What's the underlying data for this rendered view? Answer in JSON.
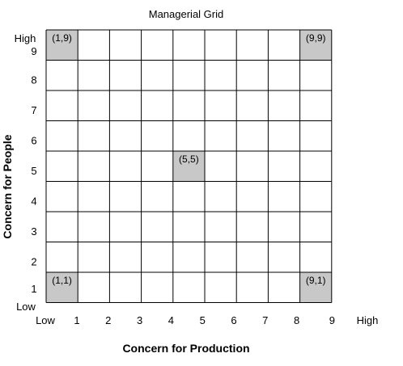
{
  "title": "Managerial Grid",
  "x_axis": {
    "title": "Concern for Production",
    "low_label": "Low",
    "high_label": "High",
    "ticks": [
      "1",
      "2",
      "3",
      "4",
      "5",
      "6",
      "7",
      "8",
      "9"
    ]
  },
  "y_axis": {
    "title": "Concern for People",
    "low_label": "Low",
    "high_label": "High",
    "ticks": [
      "1",
      "2",
      "3",
      "4",
      "5",
      "6",
      "7",
      "8",
      "9"
    ]
  },
  "grid": {
    "cols": 9,
    "rows": 9
  },
  "highlighted_cells": [
    {
      "col": 1,
      "row": 9,
      "label": "(1,9)"
    },
    {
      "col": 9,
      "row": 9,
      "label": "(9,9)"
    },
    {
      "col": 5,
      "row": 5,
      "label": "(5,5)"
    },
    {
      "col": 1,
      "row": 1,
      "label": "(1,1)"
    },
    {
      "col": 9,
      "row": 1,
      "label": "(9,1)"
    }
  ],
  "colors": {
    "highlight": "#c8c8c8",
    "grid_line": "#000000",
    "background": "#ffffff"
  }
}
